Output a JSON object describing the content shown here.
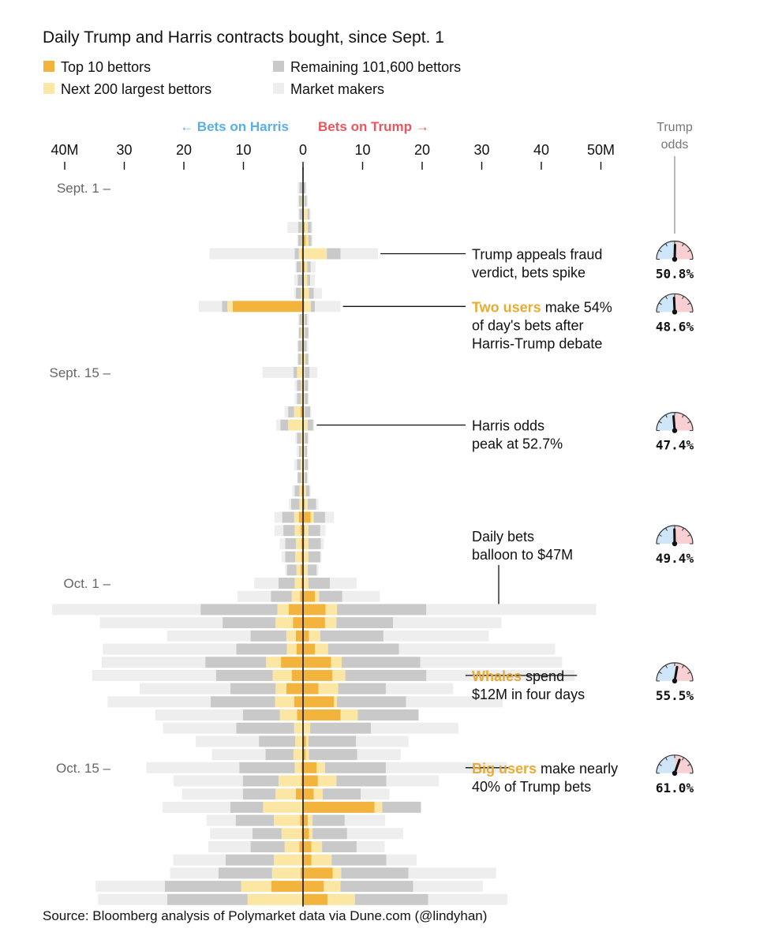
{
  "chart_data": {
    "type": "bar",
    "title": "Daily Trump and Harris contracts bought, since Sept. 1",
    "legend": [
      {
        "label": "Top 10 bettors",
        "color": "#f2b43c"
      },
      {
        "label": "Next 200 largest bettors",
        "color": "#fce6a3"
      },
      {
        "label": "Remaining 101,600 bettors",
        "color": "#c9c9c9"
      },
      {
        "label": "Market makers",
        "color": "#eeeeee"
      }
    ],
    "direction_labels": {
      "harris": "← Bets on Harris",
      "trump": "Bets on Trump →"
    },
    "x_ticks": [
      {
        "label": "40M",
        "value": -40
      },
      {
        "label": "30",
        "value": -30
      },
      {
        "label": "20",
        "value": -20
      },
      {
        "label": "10",
        "value": -10
      },
      {
        "label": "0",
        "value": 0
      },
      {
        "label": "10",
        "value": 10
      },
      {
        "label": "20",
        "value": 20
      },
      {
        "label": "30",
        "value": 30
      },
      {
        "label": "40",
        "value": 40
      },
      {
        "label": "50M",
        "value": 50
      }
    ],
    "xlim": [
      -40,
      50
    ],
    "units": "millions of contracts",
    "y_labels": [
      {
        "label": "Sept. 1 –",
        "day": 0
      },
      {
        "label": "Sept. 15 –",
        "day": 14
      },
      {
        "label": "Oct. 1 –",
        "day": 30
      },
      {
        "label": "Oct. 15 –",
        "day": 44
      }
    ],
    "segment_order": [
      "Top 10 bettors",
      "Next 200 largest bettors",
      "Remaining 101,600 bettors",
      "Market makers"
    ],
    "days": [
      {
        "date": "Sep 1",
        "harris": [
          0,
          0.1,
          0.5,
          0.3
        ],
        "trump": [
          0,
          0.1,
          0.3,
          0.2
        ]
      },
      {
        "date": "Sep 2",
        "harris": [
          0,
          0.2,
          0.5,
          0.2
        ],
        "trump": [
          0,
          0.3,
          0.3,
          0.2
        ]
      },
      {
        "date": "Sep 3",
        "harris": [
          0,
          0.1,
          0.5,
          0.2
        ],
        "trump": [
          0,
          0.8,
          0.3,
          0.2
        ]
      },
      {
        "date": "Sep 4",
        "harris": [
          0,
          0.2,
          0.6,
          1.8
        ],
        "trump": [
          0.3,
          0.5,
          0.6,
          0.2
        ]
      },
      {
        "date": "Sep 5",
        "harris": [
          0,
          0.2,
          0.6,
          0.2
        ],
        "trump": [
          0.4,
          0.5,
          0.5,
          0.2
        ]
      },
      {
        "date": "Sep 6",
        "harris": [
          0.2,
          0.5,
          0.7,
          14.3
        ],
        "trump": [
          0,
          4.0,
          2.3,
          6.3
        ]
      },
      {
        "date": "Sep 7",
        "harris": [
          0.1,
          0.2,
          0.8,
          0.2
        ],
        "trump": [
          0.3,
          0.4,
          0.6,
          0.8
        ]
      },
      {
        "date": "Sep 8",
        "harris": [
          0,
          0.1,
          0.8,
          0.6
        ],
        "trump": [
          0.1,
          0.6,
          0.5,
          0.8
        ]
      },
      {
        "date": "Sep 9",
        "harris": [
          0.1,
          0.2,
          0.9,
          0.3
        ],
        "trump": [
          0.2,
          0.8,
          0.8,
          1.4
        ]
      },
      {
        "date": "Sep 10",
        "harris": [
          11.8,
          0.9,
          0.9,
          3.9
        ],
        "trump": [
          0.2,
          1.1,
          0.7,
          4.3
        ]
      },
      {
        "date": "Sep 11",
        "harris": [
          0,
          0.2,
          0.4,
          0.2
        ],
        "trump": [
          0,
          0.3,
          0.4,
          0.3
        ]
      },
      {
        "date": "Sep 12",
        "harris": [
          0,
          0.3,
          0.4,
          0.1
        ],
        "trump": [
          0,
          0.3,
          0.6,
          0.1
        ]
      },
      {
        "date": "Sep 13",
        "harris": [
          0,
          0.2,
          0.6,
          0.2
        ],
        "trump": [
          0,
          0.2,
          0.4,
          0.3
        ]
      },
      {
        "date": "Sep 14",
        "harris": [
          0,
          0.3,
          0.5,
          0.2
        ],
        "trump": [
          0.1,
          0.3,
          0.5,
          0.1
        ]
      },
      {
        "date": "Sep 15",
        "harris": [
          0,
          1.0,
          0.6,
          5.2
        ],
        "trump": [
          0,
          0.3,
          0.8,
          1.3
        ]
      },
      {
        "date": "Sep 16",
        "harris": [
          0,
          0.3,
          0.7,
          0.4
        ],
        "trump": [
          0,
          0.3,
          0.5,
          0.2
        ]
      },
      {
        "date": "Sep 17",
        "harris": [
          0,
          0.3,
          0.7,
          0.4
        ],
        "trump": [
          0,
          0.3,
          0.5,
          0.2
        ]
      },
      {
        "date": "Sep 18",
        "harris": [
          0.4,
          1.1,
          1.0,
          0.6
        ],
        "trump": [
          0,
          0.3,
          0.9,
          0.2
        ]
      },
      {
        "date": "Sep 19",
        "harris": [
          0.1,
          2.4,
          1.3,
          0.7
        ],
        "trump": [
          0,
          0.8,
          0.9,
          0.2
        ]
      },
      {
        "date": "Sep 20",
        "harris": [
          0,
          0.3,
          0.7,
          0.3
        ],
        "trump": [
          0,
          0.3,
          0.5,
          0.2
        ]
      },
      {
        "date": "Sep 21",
        "harris": [
          0,
          0.3,
          0.4,
          0.4
        ],
        "trump": [
          0,
          0.3,
          0.4,
          0.1
        ]
      },
      {
        "date": "Sep 22",
        "harris": [
          0,
          0.4,
          0.6,
          0.5
        ],
        "trump": [
          0,
          0.3,
          0.5,
          0.2
        ]
      },
      {
        "date": "Sep 23",
        "harris": [
          0,
          0.3,
          0.6,
          0.1
        ],
        "trump": [
          0,
          0.3,
          0.4,
          0.2
        ]
      },
      {
        "date": "Sep 24",
        "harris": [
          0.2,
          0.4,
          0.8,
          0.4
        ],
        "trump": [
          0.1,
          0.4,
          0.6,
          0.2
        ]
      },
      {
        "date": "Sep 25",
        "harris": [
          0,
          0.6,
          1.4,
          0.4
        ],
        "trump": [
          0.3,
          0.5,
          1.4,
          0.4
        ]
      },
      {
        "date": "Sep 26",
        "harris": [
          0.7,
          0.8,
          2.0,
          1.3
        ],
        "trump": [
          1.3,
          0.5,
          1.9,
          1.5
        ]
      },
      {
        "date": "Sep 27",
        "harris": [
          0.4,
          1.0,
          1.9,
          1.5
        ],
        "trump": [
          0.3,
          0.6,
          2.0,
          0.9
        ]
      },
      {
        "date": "Sep 28",
        "harris": [
          0.3,
          0.9,
          1.8,
          0.9
        ],
        "trump": [
          0.2,
          0.7,
          2.1,
          0.5
        ]
      },
      {
        "date": "Sep 29",
        "harris": [
          0.3,
          1.0,
          1.7,
          0.6
        ],
        "trump": [
          0.1,
          0.8,
          2.0,
          0.2
        ]
      },
      {
        "date": "Sep 30",
        "harris": [
          0.4,
          0.7,
          1.6,
          0.3
        ],
        "trump": [
          0.1,
          0.7,
          1.5,
          0.3
        ]
      },
      {
        "date": "Oct 1",
        "harris": [
          0.3,
          1.1,
          2.7,
          4.1
        ],
        "trump": [
          0.1,
          0.8,
          3.6,
          4.5
        ]
      },
      {
        "date": "Oct 2",
        "harris": [
          0.5,
          1.4,
          3.5,
          5.6
        ],
        "trump": [
          2.0,
          0.7,
          3.9,
          6.3
        ]
      },
      {
        "date": "Oct 3",
        "harris": [
          2.4,
          1.9,
          12.9,
          24.9
        ],
        "trump": [
          3.8,
          1.9,
          15.0,
          28.5
        ]
      },
      {
        "date": "Oct 4",
        "harris": [
          1.7,
          2.9,
          8.9,
          20.6
        ],
        "trump": [
          3.7,
          1.9,
          9.5,
          18.2
        ]
      },
      {
        "date": "Oct 5",
        "harris": [
          1.2,
          1.6,
          6.0,
          14.0
        ],
        "trump": [
          1.0,
          1.9,
          10.6,
          17.7
        ]
      },
      {
        "date": "Oct 6",
        "harris": [
          1.1,
          1.6,
          8.5,
          22.4
        ],
        "trump": [
          2.0,
          2.2,
          11.9,
          26.2
        ]
      },
      {
        "date": "Oct 7",
        "harris": [
          3.7,
          2.5,
          10.2,
          17.4
        ],
        "trump": [
          4.7,
          1.8,
          13.2,
          23.8
        ]
      },
      {
        "date": "Oct 8",
        "harris": [
          1.9,
          3.2,
          9.5,
          20.8
        ],
        "trump": [
          4.9,
          2.2,
          13.6,
          24.9
        ]
      },
      {
        "date": "Oct 9",
        "harris": [
          2.8,
          1.8,
          7.6,
          15.2
        ],
        "trump": [
          2.6,
          3.3,
          8.0,
          11.3
        ]
      },
      {
        "date": "Oct 10",
        "harris": [
          1.5,
          3.2,
          10.8,
          17.3
        ],
        "trump": [
          5.2,
          0.5,
          11.6,
          16.2
        ]
      },
      {
        "date": "Oct 11",
        "harris": [
          1.0,
          2.9,
          6.2,
          14.7
        ],
        "trump": [
          6.3,
          2.9,
          10.2,
          0
        ]
      },
      {
        "date": "Oct 12",
        "harris": [
          0,
          1.5,
          9.7,
          12.3
        ],
        "trump": [
          0,
          1.2,
          10.2,
          14.7
        ]
      },
      {
        "date": "Oct 13",
        "harris": [
          0,
          1.3,
          6.1,
          10.6
        ],
        "trump": [
          0.5,
          0.4,
          8.0,
          8.8
        ]
      },
      {
        "date": "Oct 14",
        "harris": [
          0,
          1.6,
          4.7,
          9.0
        ],
        "trump": [
          0.4,
          0.6,
          8.1,
          7.3
        ]
      },
      {
        "date": "Oct 15",
        "harris": [
          0.3,
          1.1,
          9.3,
          15.6
        ],
        "trump": [
          2.3,
          1.4,
          10.2,
          20.3
        ]
      },
      {
        "date": "Oct 16",
        "harris": [
          0.3,
          3.8,
          6.0,
          11.6
        ],
        "trump": [
          2.5,
          3.1,
          8.4,
          8.8
        ]
      },
      {
        "date": "Oct 17",
        "harris": [
          1.2,
          3.4,
          5.5,
          10.2
        ],
        "trump": [
          1.8,
          1.5,
          6.4,
          4.8
        ]
      },
      {
        "date": "Oct 18",
        "harris": [
          0,
          6.7,
          5.5,
          11.4
        ],
        "trump": [
          12.0,
          1.3,
          6.5,
          0
        ]
      },
      {
        "date": "Oct 19",
        "harris": [
          0.5,
          4.4,
          6.4,
          4.9
        ],
        "trump": [
          0.8,
          0.8,
          5.4,
          6.8
        ]
      },
      {
        "date": "Oct 20",
        "harris": [
          0.2,
          3.4,
          4.9,
          7.1
        ],
        "trump": [
          1.0,
          0.6,
          5.8,
          9.4
        ]
      },
      {
        "date": "Oct 21",
        "harris": [
          0.6,
          2.5,
          5.7,
          7.1
        ],
        "trump": [
          1.4,
          1.8,
          5.8,
          4.7
        ]
      },
      {
        "date": "Oct 22",
        "harris": [
          0.2,
          4.7,
          8.1,
          8.8
        ],
        "trump": [
          1.4,
          3.4,
          9.2,
          5.1
        ]
      },
      {
        "date": "Oct 23",
        "harris": [
          0.4,
          4.8,
          9.0,
          8.1
        ],
        "trump": [
          5.0,
          1.4,
          11.3,
          14.7
        ]
      },
      {
        "date": "Oct 24",
        "harris": [
          5.3,
          5.1,
          12.8,
          11.6
        ],
        "trump": [
          3.5,
          2.8,
          12.2,
          11.7
        ]
      },
      {
        "date": "Oct 25",
        "harris": [
          0,
          9.3,
          13.5,
          11.6
        ],
        "trump": [
          4.1,
          4.6,
          12.3,
          13.3
        ]
      }
    ],
    "annotations": [
      {
        "day": 5,
        "harris_odds": 0.508,
        "lines": [
          [
            {
              "text": "Trump appeals fraud",
              "hl": false
            }
          ],
          [
            {
              "text": "verdict, bets spike",
              "hl": false
            }
          ]
        ],
        "odds": "50.8%"
      },
      {
        "day": 9,
        "harris_odds": 0.486,
        "lines": [
          [
            {
              "text": "Two users",
              "hl": true
            },
            {
              "text": " make 54%",
              "hl": false
            }
          ],
          [
            {
              "text": "of day's bets after",
              "hl": false
            }
          ],
          [
            {
              "text": "Harris-Trump debate",
              "hl": false
            }
          ]
        ],
        "odds": "48.6%"
      },
      {
        "day": 18,
        "harris_odds": 0.474,
        "lines": [
          [
            {
              "text": "Harris odds",
              "hl": false
            }
          ],
          [
            {
              "text": "peak at 52.7%",
              "hl": false
            }
          ]
        ],
        "odds": "47.4%"
      },
      {
        "day": 27,
        "harris_odds": 0.494,
        "lines": [
          [
            {
              "text": "Daily bets",
              "hl": false
            }
          ],
          [
            {
              "text": "balloon to $47M",
              "hl": false
            }
          ]
        ],
        "odds": "49.4%"
      },
      {
        "day": 37,
        "harris_odds": 0.555,
        "lines": [
          [
            {
              "text": "Whales",
              "hl": true
            },
            {
              "text": " spend",
              "hl": false
            }
          ],
          [
            {
              "text": "$12M in four days",
              "hl": false
            }
          ]
        ],
        "odds": "55.5%"
      },
      {
        "day": 44,
        "harris_odds": 0.61,
        "lines": [
          [
            {
              "text": "Big users",
              "hl": true
            },
            {
              "text": " make nearly",
              "hl": false
            }
          ],
          [
            {
              "text": "40% of Trump bets",
              "hl": false
            }
          ]
        ],
        "odds": "61.0%"
      }
    ],
    "odds_header": [
      "Trump",
      "odds"
    ],
    "source": "Source: Bloomberg analysis of Polymarket data via Dune.com (@lindyhan)"
  }
}
